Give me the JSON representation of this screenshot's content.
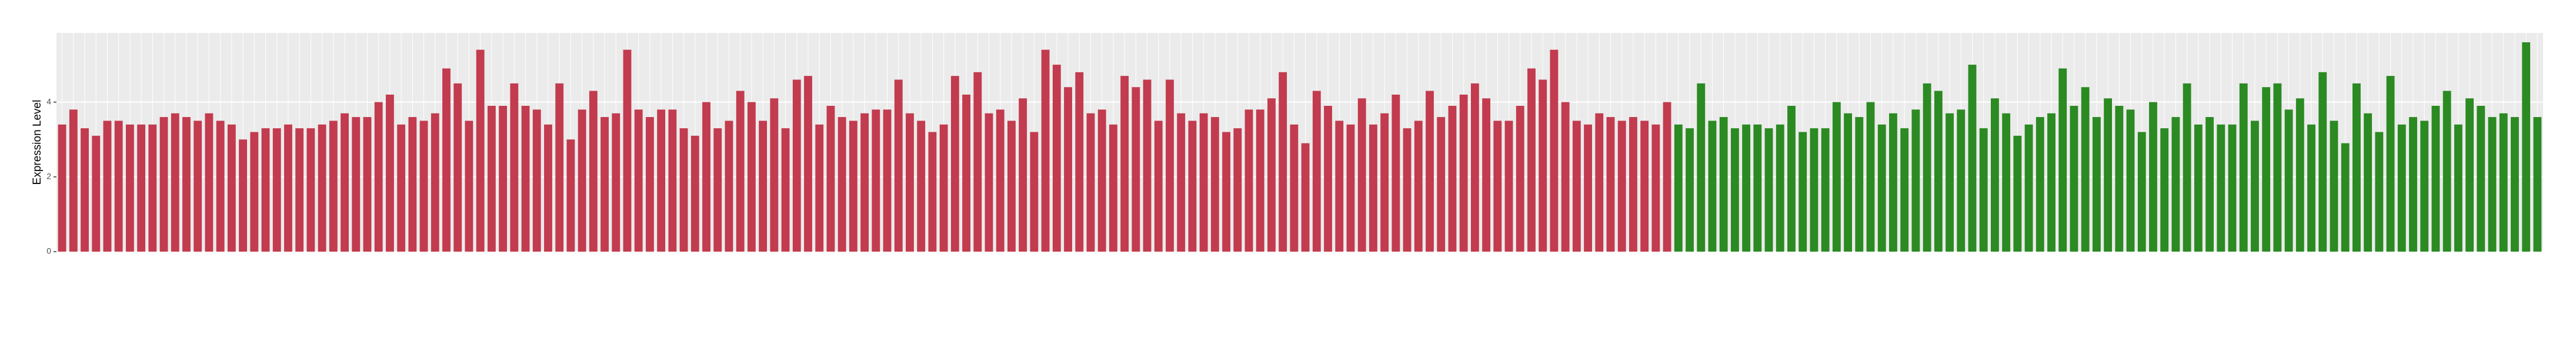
{
  "chart_data": {
    "type": "bar",
    "y_label": "Expression Level",
    "categories": [
      null,
      null,
      null,
      null,
      null,
      null,
      null,
      null,
      null,
      null,
      null,
      null,
      null,
      null,
      null,
      null,
      null,
      null,
      null,
      null,
      null,
      null,
      null,
      null,
      null,
      null,
      null,
      null,
      null,
      null,
      null,
      null,
      null,
      null,
      null,
      null,
      null,
      null,
      null,
      null,
      null,
      null,
      null,
      null,
      null,
      null,
      null,
      null,
      null,
      null,
      null,
      null,
      null,
      null,
      null,
      null,
      null,
      null,
      null,
      null,
      null,
      null,
      null,
      null,
      null,
      null,
      null,
      null,
      null,
      null,
      null,
      null,
      null,
      null,
      null,
      null,
      null,
      null,
      null,
      null,
      null,
      null,
      null,
      null,
      null,
      null,
      null,
      null,
      null,
      null,
      null,
      null,
      null,
      null,
      null,
      null,
      null,
      null,
      null,
      null,
      null,
      null,
      null,
      null,
      null,
      null,
      null,
      null,
      null,
      null,
      null,
      null,
      null,
      null,
      null,
      null,
      null,
      null,
      null,
      null,
      null,
      null,
      null,
      null,
      null,
      null,
      null,
      null,
      null,
      null,
      null,
      null,
      null,
      null,
      null,
      null,
      null,
      null,
      null,
      null,
      null,
      null,
      null,
      null,
      null,
      null,
      null,
      null,
      null,
      null,
      null,
      null,
      null,
      null,
      null,
      null,
      null,
      null,
      null,
      null,
      null,
      null,
      null,
      null,
      null,
      null,
      null,
      null,
      null,
      null,
      null,
      null,
      null,
      null,
      null,
      null,
      null,
      null,
      null,
      null,
      null,
      null,
      null,
      null,
      null,
      null,
      null,
      null,
      null,
      null,
      null,
      null,
      null,
      null,
      null,
      null,
      null,
      null,
      null,
      null,
      null,
      null,
      null,
      null,
      null,
      null,
      null,
      null,
      null,
      null,
      null,
      null,
      null,
      null,
      null,
      null,
      null,
      null,
      null,
      null
    ],
    "values": [
      3.4,
      3.8,
      3.3,
      3.1,
      3.5,
      3.5,
      3.4,
      3.4,
      3.4,
      3.6,
      3.7,
      3.6,
      3.5,
      3.7,
      3.5,
      3.4,
      3.0,
      3.2,
      3.3,
      3.3,
      3.4,
      3.3,
      3.3,
      3.4,
      3.5,
      3.7,
      3.6,
      3.6,
      4.0,
      4.2,
      3.4,
      3.6,
      3.5,
      3.7,
      4.9,
      4.5,
      3.5,
      5.4,
      3.9,
      3.9,
      4.5,
      3.9,
      3.8,
      3.4,
      4.5,
      3.0,
      3.8,
      4.3,
      3.6,
      3.7,
      5.4,
      3.8,
      3.6,
      3.8,
      3.8,
      3.3,
      3.1,
      4.0,
      3.3,
      3.5,
      4.3,
      4.0,
      3.5,
      4.1,
      3.3,
      4.6,
      4.7,
      3.4,
      3.9,
      3.6,
      3.5,
      3.7,
      3.8,
      3.8,
      4.6,
      3.7,
      3.5,
      3.2,
      3.4,
      4.7,
      4.2,
      4.8,
      3.7,
      3.8,
      3.5,
      4.1,
      3.2,
      5.4,
      5.0,
      4.4,
      4.8,
      3.7,
      3.8,
      3.4,
      4.7,
      4.4,
      4.6,
      3.5,
      4.6,
      3.7,
      3.5,
      3.7,
      3.6,
      3.2,
      3.3,
      3.8,
      3.8,
      4.1,
      4.8,
      3.4,
      2.9,
      4.3,
      3.9,
      3.5,
      3.4,
      4.1,
      3.4,
      3.7,
      4.2,
      3.3,
      3.5,
      4.3,
      3.6,
      3.9,
      4.2,
      4.5,
      4.1,
      3.5,
      3.5,
      3.9,
      4.9,
      4.6,
      5.4,
      4.0,
      3.5,
      3.4,
      3.7,
      3.6,
      3.5,
      3.6,
      3.5,
      3.4,
      4.0,
      3.4,
      3.3,
      4.5,
      3.5,
      3.6,
      3.3,
      3.4,
      3.4,
      3.3,
      3.4,
      3.9,
      3.2,
      3.3,
      3.3,
      4.0,
      3.7,
      3.6,
      4.0,
      3.4,
      3.7,
      3.3,
      3.8,
      4.5,
      4.3,
      3.7,
      3.8,
      5.0,
      3.3,
      4.1,
      3.7,
      3.1,
      3.4,
      3.6,
      3.7,
      4.9,
      3.9,
      4.4,
      3.6,
      4.1,
      3.9,
      3.8,
      3.2,
      4.0,
      3.3,
      3.6,
      4.5,
      3.4,
      3.6,
      3.4,
      3.4,
      4.5,
      3.5,
      4.4,
      4.5,
      3.8,
      4.1,
      3.4,
      4.8,
      3.5,
      2.9,
      4.5,
      3.7,
      3.2,
      4.7,
      3.4,
      3.6,
      3.5,
      3.9,
      4.3,
      3.4,
      4.1,
      3.9,
      3.6,
      3.7,
      3.6,
      5.6,
      3.6
    ],
    "colors": [
      "#c23b4e",
      "#c23b4e",
      "#c23b4e",
      "#c23b4e",
      "#c23b4e",
      "#c23b4e",
      "#c23b4e",
      "#c23b4e",
      "#c23b4e",
      "#c23b4e",
      "#c23b4e",
      "#c23b4e",
      "#c23b4e",
      "#c23b4e",
      "#c23b4e",
      "#c23b4e",
      "#c23b4e",
      "#c23b4e",
      "#c23b4e",
      "#c23b4e",
      "#c23b4e",
      "#c23b4e",
      "#c23b4e",
      "#c23b4e",
      "#c23b4e",
      "#c23b4e",
      "#c23b4e",
      "#c23b4e",
      "#c23b4e",
      "#c23b4e",
      "#c23b4e",
      "#c23b4e",
      "#c23b4e",
      "#c23b4e",
      "#c23b4e",
      "#c23b4e",
      "#c23b4e",
      "#c23b4e",
      "#c23b4e",
      "#c23b4e",
      "#c23b4e",
      "#c23b4e",
      "#c23b4e",
      "#c23b4e",
      "#c23b4e",
      "#c23b4e",
      "#c23b4e",
      "#c23b4e",
      "#c23b4e",
      "#c23b4e",
      "#c23b4e",
      "#c23b4e",
      "#c23b4e",
      "#c23b4e",
      "#c23b4e",
      "#c23b4e",
      "#c23b4e",
      "#c23b4e",
      "#c23b4e",
      "#c23b4e",
      "#c23b4e",
      "#c23b4e",
      "#c23b4e",
      "#c23b4e",
      "#c23b4e",
      "#c23b4e",
      "#c23b4e",
      "#c23b4e",
      "#c23b4e",
      "#c23b4e",
      "#c23b4e",
      "#c23b4e",
      "#c23b4e",
      "#c23b4e",
      "#c23b4e",
      "#c23b4e",
      "#c23b4e",
      "#c23b4e",
      "#c23b4e",
      "#c23b4e",
      "#c23b4e",
      "#c23b4e",
      "#c23b4e",
      "#c23b4e",
      "#c23b4e",
      "#c23b4e",
      "#c23b4e",
      "#c23b4e",
      "#c23b4e",
      "#c23b4e",
      "#c23b4e",
      "#c23b4e",
      "#c23b4e",
      "#c23b4e",
      "#c23b4e",
      "#c23b4e",
      "#c23b4e",
      "#c23b4e",
      "#c23b4e",
      "#c23b4e",
      "#c23b4e",
      "#c23b4e",
      "#c23b4e",
      "#c23b4e",
      "#c23b4e",
      "#c23b4e",
      "#c23b4e",
      "#c23b4e",
      "#c23b4e",
      "#c23b4e",
      "#c23b4e",
      "#c23b4e",
      "#c23b4e",
      "#c23b4e",
      "#c23b4e",
      "#c23b4e",
      "#c23b4e",
      "#c23b4e",
      "#c23b4e",
      "#c23b4e",
      "#c23b4e",
      "#c23b4e",
      "#c23b4e",
      "#c23b4e",
      "#c23b4e",
      "#c23b4e",
      "#c23b4e",
      "#c23b4e",
      "#c23b4e",
      "#c23b4e",
      "#c23b4e",
      "#c23b4e",
      "#c23b4e",
      "#c23b4e",
      "#c23b4e",
      "#c23b4e",
      "#c23b4e",
      "#c23b4e",
      "#c23b4e",
      "#c23b4e",
      "#c23b4e",
      "#c23b4e",
      "#c23b4e",
      "#2b8a22",
      "#2b8a22",
      "#2b8a22",
      "#2b8a22",
      "#2b8a22",
      "#2b8a22",
      "#2b8a22",
      "#2b8a22",
      "#2b8a22",
      "#2b8a22",
      "#2b8a22",
      "#2b8a22",
      "#2b8a22",
      "#2b8a22",
      "#2b8a22",
      "#2b8a22",
      "#2b8a22",
      "#2b8a22",
      "#2b8a22",
      "#2b8a22",
      "#2b8a22",
      "#2b8a22",
      "#2b8a22",
      "#2b8a22",
      "#2b8a22",
      "#2b8a22",
      "#2b8a22",
      "#2b8a22",
      "#2b8a22",
      "#2b8a22",
      "#2b8a22",
      "#2b8a22",
      "#2b8a22",
      "#2b8a22",
      "#2b8a22",
      "#2b8a22",
      "#2b8a22",
      "#2b8a22",
      "#2b8a22",
      "#2b8a22",
      "#2b8a22",
      "#2b8a22",
      "#2b8a22",
      "#2b8a22",
      "#2b8a22",
      "#2b8a22",
      "#2b8a22",
      "#2b8a22",
      "#2b8a22",
      "#2b8a22",
      "#2b8a22",
      "#2b8a22",
      "#2b8a22",
      "#2b8a22",
      "#2b8a22",
      "#2b8a22",
      "#2b8a22",
      "#2b8a22",
      "#2b8a22",
      "#2b8a22",
      "#2b8a22",
      "#2b8a22",
      "#2b8a22",
      "#2b8a22",
      "#2b8a22",
      "#2b8a22",
      "#2b8a22",
      "#2b8a22",
      "#2b8a22",
      "#2b8a22",
      "#2b8a22",
      "#2b8a22",
      "#2b8a22",
      "#2b8a22",
      "#2b8a22",
      "#2b8a22",
      "#2b8a22"
    ],
    "ylim": [
      0,
      5.85
    ],
    "yticks": [
      0,
      2,
      4
    ],
    "grid": true
  }
}
